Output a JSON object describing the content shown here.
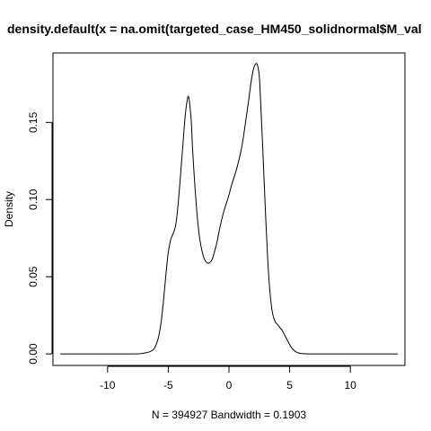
{
  "chart_data": {
    "type": "line",
    "title": "density.default(x = na.omit(targeted_case_HM450_solidnormal$M_val",
    "xlabel": "N = 394927   Bandwidth = 0.1903",
    "ylabel": "Density",
    "xlim": [
      -14.5,
      14.5
    ],
    "ylim": [
      -0.0075,
      0.195
    ],
    "x_ticks": [
      -10,
      -5,
      0,
      5,
      10
    ],
    "x_tick_labels": [
      "-10",
      "-5",
      "0",
      "5",
      "10"
    ],
    "y_ticks": [
      0.0,
      0.05,
      0.1,
      0.15
    ],
    "y_tick_labels": [
      "0.00",
      "0.05",
      "0.10",
      "0.15"
    ],
    "grid": false,
    "series": [
      {
        "color": "#000000",
        "x": [
          -13.9,
          -8.0,
          -7.0,
          -6.5,
          -6.2,
          -6.0,
          -5.8,
          -5.6,
          -5.4,
          -5.2,
          -5.0,
          -4.8,
          -4.6,
          -4.4,
          -4.2,
          -4.0,
          -3.8,
          -3.6,
          -3.45,
          -3.35,
          -3.25,
          -3.1,
          -3.0,
          -2.8,
          -2.6,
          -2.4,
          -2.2,
          -2.0,
          -1.8,
          -1.6,
          -1.4,
          -1.2,
          -1.0,
          -0.8,
          -0.6,
          -0.4,
          -0.2,
          0.0,
          0.2,
          0.4,
          0.6,
          0.8,
          1.0,
          1.2,
          1.4,
          1.6,
          1.8,
          2.0,
          2.2,
          2.35,
          2.5,
          2.6,
          2.8,
          3.0,
          3.2,
          3.4,
          3.6,
          3.8,
          4.0,
          4.2,
          4.4,
          4.6,
          4.8,
          5.0,
          5.2,
          5.4,
          5.6,
          5.8,
          6.0,
          6.3,
          6.6,
          7.0,
          8.0,
          13.9
        ],
        "y": [
          0.0,
          0.0,
          0.0005,
          0.0015,
          0.003,
          0.006,
          0.011,
          0.02,
          0.034,
          0.051,
          0.066,
          0.074,
          0.078,
          0.083,
          0.096,
          0.115,
          0.135,
          0.155,
          0.164,
          0.167,
          0.163,
          0.15,
          0.133,
          0.108,
          0.088,
          0.074,
          0.066,
          0.061,
          0.059,
          0.059,
          0.061,
          0.066,
          0.072,
          0.08,
          0.087,
          0.093,
          0.098,
          0.103,
          0.109,
          0.114,
          0.119,
          0.125,
          0.132,
          0.141,
          0.152,
          0.163,
          0.175,
          0.184,
          0.188,
          0.187,
          0.18,
          0.165,
          0.13,
          0.093,
          0.06,
          0.038,
          0.026,
          0.021,
          0.019,
          0.017,
          0.015,
          0.012,
          0.009,
          0.006,
          0.0035,
          0.002,
          0.001,
          0.0005,
          0.0002,
          0.0001,
          0.0,
          0.0,
          0.0,
          0.0
        ]
      }
    ]
  }
}
